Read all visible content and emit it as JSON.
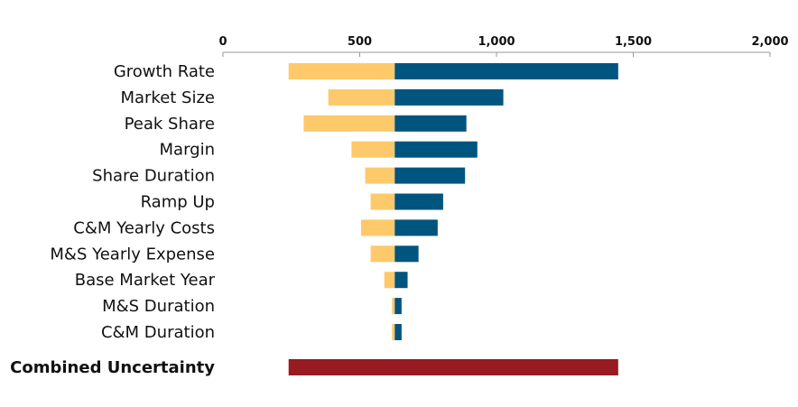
{
  "chart_data": {
    "type": "bar",
    "subtype": "tornado",
    "title": "",
    "xlabel": "",
    "ylabel": "",
    "xlim": [
      0,
      2000
    ],
    "base_value": 628,
    "x_ticks": [
      0,
      500,
      1000,
      1500,
      2000
    ],
    "x_tick_labels": [
      "0",
      "500",
      "1,000",
      "1,500",
      "2,000"
    ],
    "grid": false,
    "legend": "none",
    "categories": [
      "Growth Rate",
      "Market Size",
      "Peak Share",
      "Margin",
      "Share Duration",
      "Ramp Up",
      "C&M Yearly Costs",
      "M&S Yearly Expense",
      "Base Market Year",
      "M&S Duration",
      "C&M Duration"
    ],
    "low": [
      240,
      385,
      295,
      470,
      520,
      540,
      505,
      540,
      590,
      618,
      618
    ],
    "high": [
      1445,
      1025,
      890,
      930,
      885,
      805,
      785,
      715,
      675,
      653,
      653
    ],
    "combined": {
      "label": "Combined Uncertainty",
      "low": 240,
      "high": 1445
    },
    "colors": {
      "low": "#FDC96B",
      "high": "#00557F",
      "combined": "#971B20",
      "axis": "#999999",
      "text": "#111111"
    }
  }
}
